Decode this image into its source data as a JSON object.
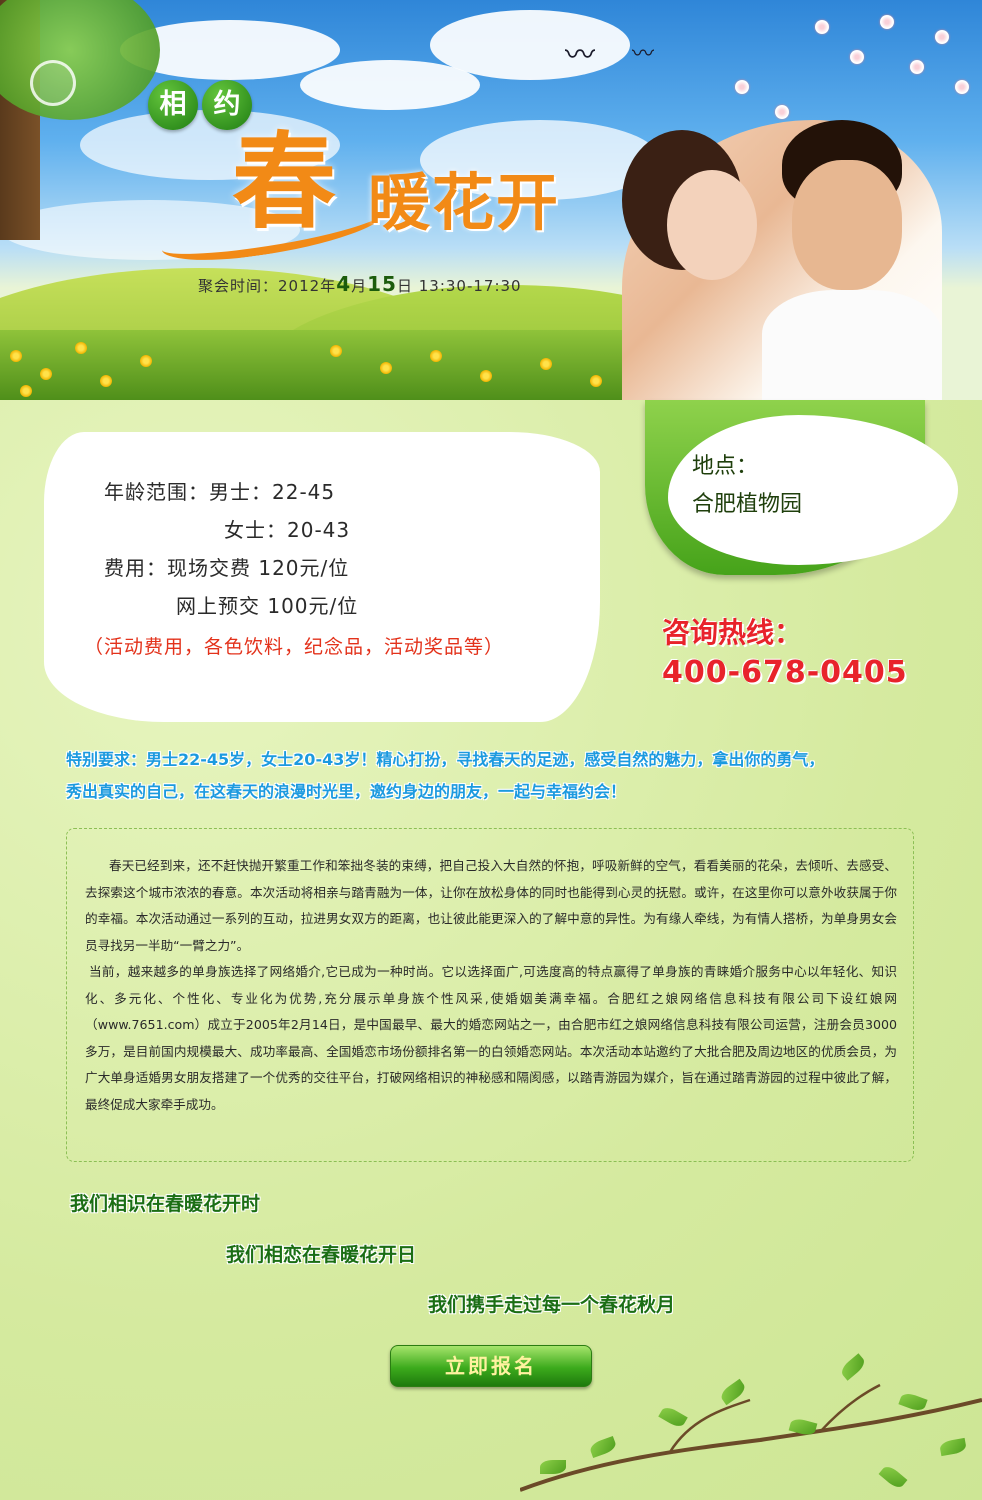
{
  "banner": {
    "tag_1": "相",
    "tag_2": "约",
    "title_first": "春",
    "title_rest": "暖花开",
    "date_prefix": "聚会时间：2012年",
    "date_month": "4",
    "date_mid": "月",
    "date_day": "15",
    "date_suffix": "日  13:30-17:30"
  },
  "info": {
    "age_label": "年龄范围：男士：22-45",
    "age_female": "女士：20-43",
    "fee_label": "费用：现场交费 120元/位",
    "fee_online": "网上预交 100元/位",
    "fee_note": "（活动费用，各色饮料，纪念品，活动奖品等）"
  },
  "location": {
    "label": "地点：",
    "name": "合肥植物园"
  },
  "hotline": {
    "label": "咨询热线：",
    "number": "400-678-0405"
  },
  "requirement": {
    "line1": "特别要求：男士22-45岁，女士20-43岁！精心打扮，寻找春天的足迹，感受自然的魅力，拿出你的勇气，",
    "line2": "秀出真实的自己，在这春天的浪漫时光里，邀约身边的朋友，一起与幸福约会！"
  },
  "article": {
    "p1": "春天已经到来，还不赶快抛开繁重工作和笨拙冬装的束缚，把自己投入大自然的怀抱，呼吸新鲜的空气，看看美丽的花朵，去倾听、去感受、去探索这个城市浓浓的春意。本次活动将相亲与踏青融为一体，让你在放松身体的同时也能得到心灵的抚慰。或许，在这里你可以意外收获属于你的幸福。本次活动通过一系列的互动，拉进男女双方的距离，也让彼此能更深入的了解中意的异性。为有缘人牵线，为有情人搭桥，为单身男女会员寻找另一半助“一臂之力”。",
    "p2": "当前，越来越多的单身族选择了网络婚介,它已成为一种时尚。它以选择面广,可选度高的特点赢得了单身族的青睐婚介服务中心以年轻化、知识化、多元化、个性化、专业化为优势,充分展示单身族个性风采,使婚姻美满幸福。合肥红之娘网络信息科技有限公司下设红娘网（www.7651.com）成立于2005年2月14日，是中国最早、最大的婚恋网站之一，由合肥市红之娘网络信息科技有限公司运营，注册会员3000多万，是目前国内规模最大、成功率最高、全国婚恋市场份额排名第一的白领婚恋网站。本次活动本站邀约了大批合肥及周边地区的优质会员，为广大单身适婚男女朋友搭建了一个优秀的交往平台，打破网络相识的神秘感和隔阂感，以踏青游园为媒介，旨在通过踏青游园的过程中彼此了解，最终促成大家牵手成功。"
  },
  "slogans": {
    "line1": "我们相识在春暖花开时",
    "line2": "我们相恋在春暖花开日",
    "line3": "我们携手走过每一个春花秋月"
  },
  "signup_button": "立即报名",
  "colors": {
    "accent_orange": "#f28a16",
    "brand_green": "#3caa1c",
    "hotline_red": "#e8232b",
    "requirement_blue": "#1c9adf"
  }
}
